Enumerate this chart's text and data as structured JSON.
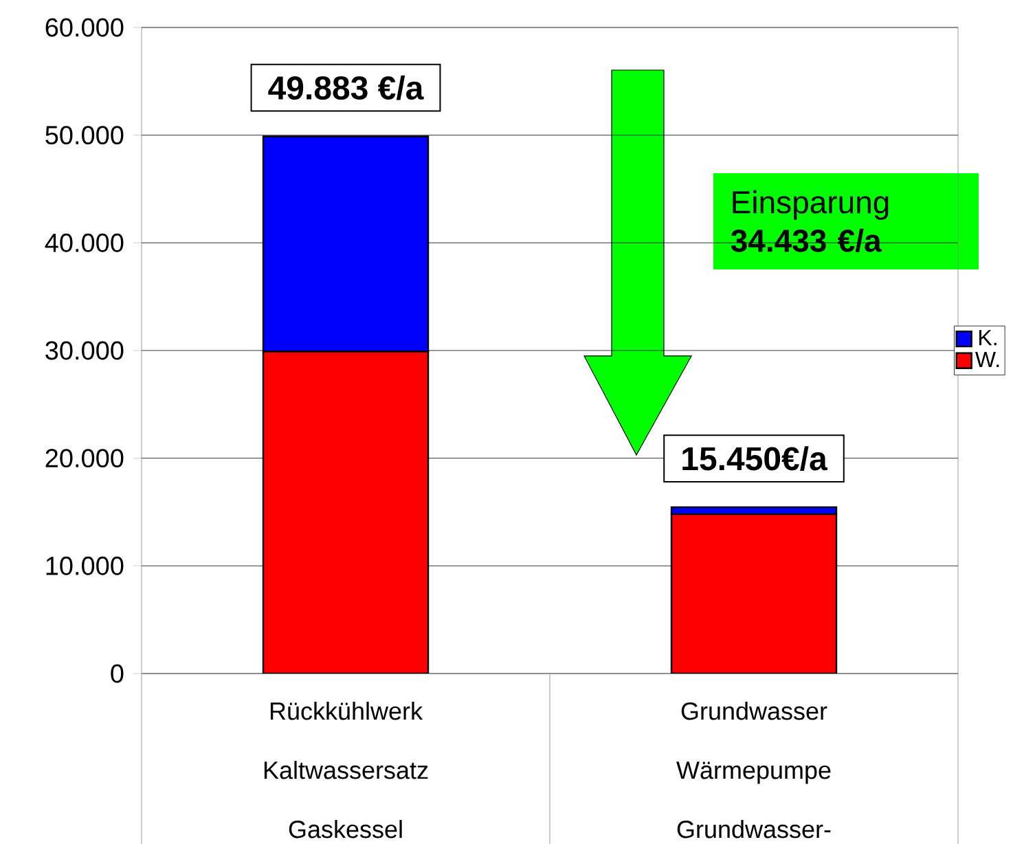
{
  "chart_data": {
    "type": "bar",
    "stacked": true,
    "categories": [
      "Rückkühlwerk Kaltwassersatz Gaskessel",
      "Grundwasser Wärmepumpe Grundwasser-"
    ],
    "series": [
      {
        "name": "W.",
        "color": "#ff0000",
        "values": [
          29900,
          14800
        ]
      },
      {
        "name": "K.",
        "color": "#0000ff",
        "values": [
          19983,
          650
        ]
      }
    ],
    "totals": [
      "49.883 €/a",
      "15.450€/a"
    ],
    "annotations": [
      "Einsparung **34.433 €/a**"
    ],
    "ylim": [
      0,
      60000
    ],
    "yticks": [
      0,
      {
        "value": 10000,
        "label": "10.000"
      },
      {
        "value": 20000,
        "label": "20.000"
      },
      {
        "value": 30000,
        "label": "30.000"
      },
      {
        "value": 40000,
        "label": "40.000"
      },
      {
        "value": 50000,
        "label": "50.000"
      },
      {
        "value": 60000,
        "label": "60.000"
      }
    ],
    "grid": "y",
    "legend": "right"
  }
}
